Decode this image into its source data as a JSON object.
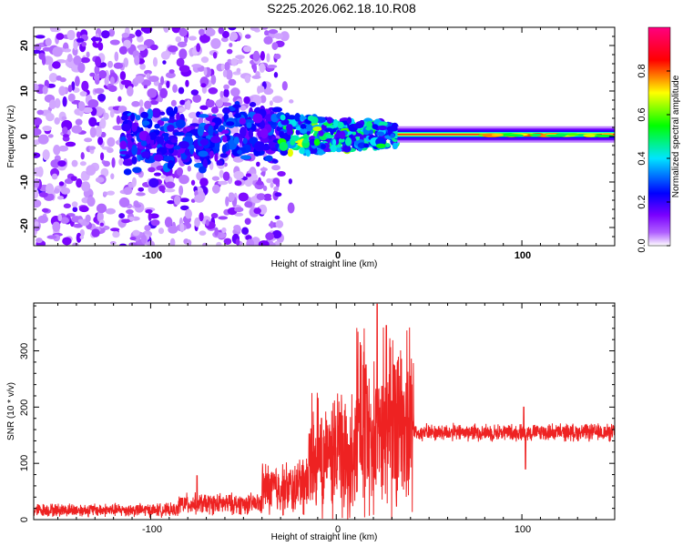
{
  "title": "S225.2026.062.18.10.R08",
  "chart_data": [
    {
      "type": "heatmap",
      "xlabel": "Height of straight line (km)",
      "ylabel": "Frequency (Hz)",
      "xlim": [
        -163,
        150
      ],
      "ylim": [
        -24,
        24
      ],
      "xticks": [
        "-100",
        "0",
        "100"
      ],
      "yticks": [
        "20",
        "10",
        "0",
        "-10",
        "-20"
      ],
      "colorbar": {
        "label": "Normalized spectral amplitude",
        "range": [
          0,
          1
        ],
        "ticks": [
          "0.0",
          "0.2",
          "0.4",
          "0.6",
          "0.8"
        ],
        "colors": [
          "#ffffff",
          "#7a00ff",
          "#0000ff",
          "#00e5ff",
          "#00ff00",
          "#ffff00",
          "#ff0000",
          "#ff0080"
        ]
      },
      "regions": [
        {
          "name": "noise",
          "x": [
            -163,
            -30
          ],
          "freq_spread": 24,
          "peak_amplitude": 0.2
        },
        {
          "name": "scattered-signal",
          "x": [
            -115,
            -30
          ],
          "center_freq": 0,
          "freq_spread": 6,
          "peak_amplitude": 0.4
        },
        {
          "name": "transition",
          "x": [
            -30,
            33
          ],
          "center_freq": 0,
          "freq_spread": 4,
          "peak_amplitude": 0.6
        },
        {
          "name": "clean-carrier",
          "x": [
            33,
            150
          ],
          "center_freq": 0.5,
          "freq_spread": 1.5,
          "peak_amplitude": 1.0
        }
      ]
    },
    {
      "type": "line",
      "xlabel": "Height of straight line (km)",
      "ylabel": "SNR (10 * v/v)",
      "xlim": [
        -163,
        150
      ],
      "ylim": [
        0,
        385
      ],
      "xticks": [
        "-100",
        "0",
        "100"
      ],
      "yticks": [
        "0",
        "100",
        "200",
        "300"
      ],
      "series": [
        {
          "name": "SNR",
          "color": "#ee2222",
          "segments": [
            {
              "x": [
                -163,
                -85
              ],
              "mean": 17,
              "spread": 14
            },
            {
              "x": [
                -85,
                -40
              ],
              "mean": 28,
              "spread": 22
            },
            {
              "x": [
                -40,
                -15
              ],
              "mean": 55,
              "spread": 55
            },
            {
              "x": [
                -15,
                10
              ],
              "mean": 95,
              "spread": 110
            },
            {
              "x": [
                10,
                42
              ],
              "mean": 140,
              "spread": 170
            },
            {
              "x": [
                42,
                150
              ],
              "mean": 155,
              "spread": 18
            }
          ],
          "peaks": [
            [
              22,
              383
            ],
            [
              27,
              345
            ],
            [
              16,
              275
            ],
            [
              31,
              275
            ],
            [
              35,
              285
            ],
            [
              40,
              255
            ],
            [
              2,
              190
            ],
            [
              -8,
              180
            ],
            [
              101,
              200
            ],
            [
              102,
              90
            ],
            [
              -75,
              78
            ]
          ]
        }
      ]
    }
  ]
}
